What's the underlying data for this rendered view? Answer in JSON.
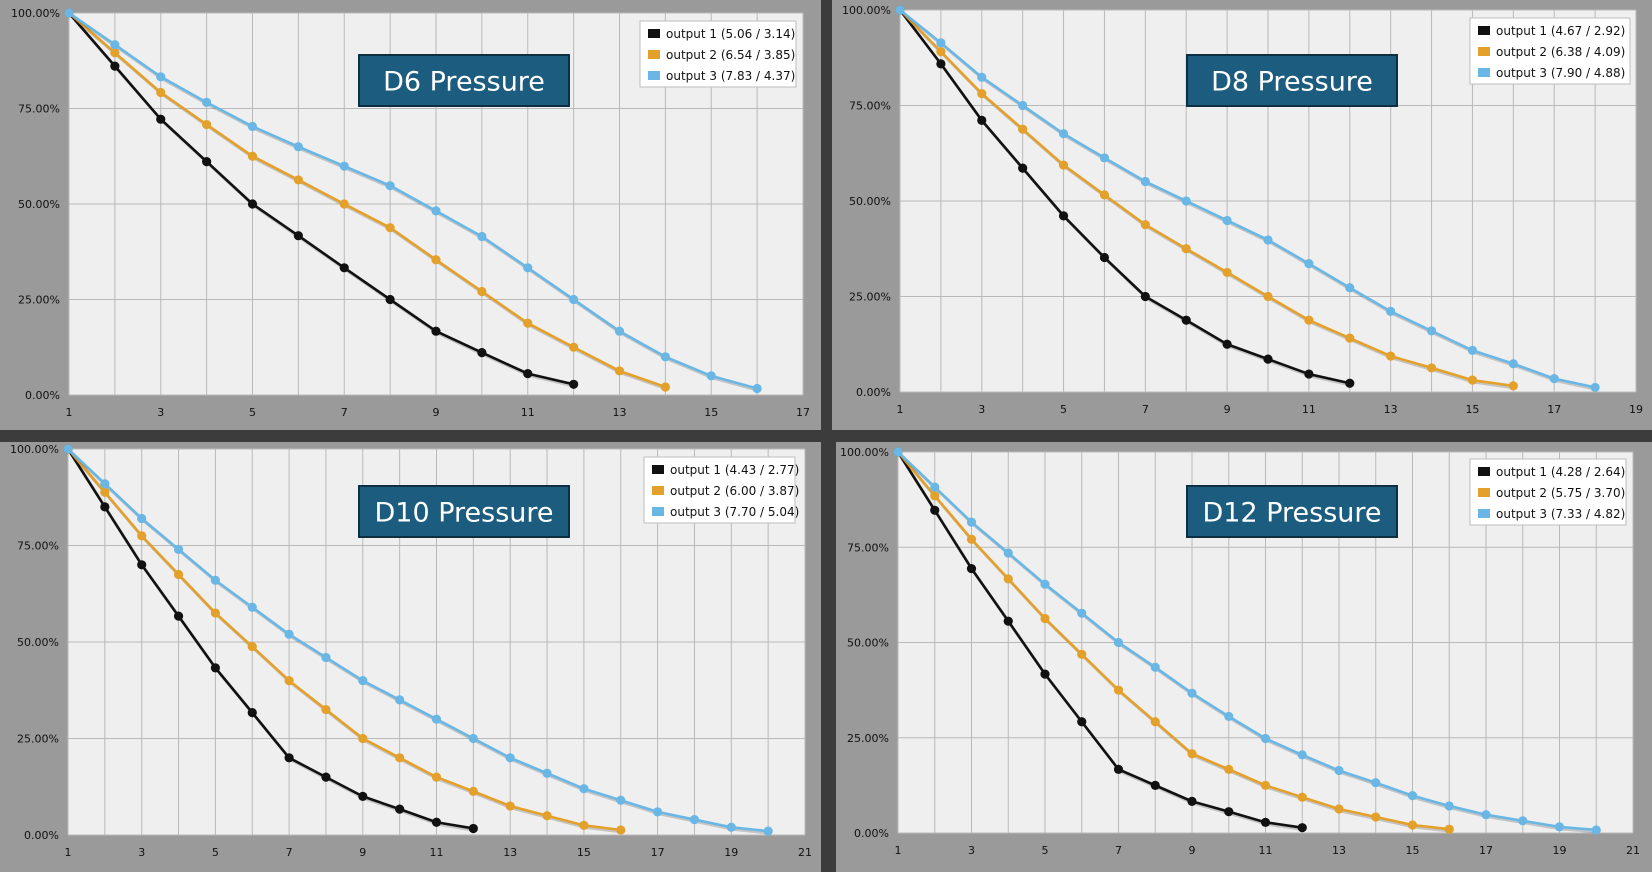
{
  "colors": {
    "output 1": "#111111",
    "output 2": "#e3a02b",
    "output 3": "#6ab7e6",
    "plot_bg": "#efefef",
    "title_bg": "#1c5d7f"
  },
  "chart_data": [
    {
      "type": "line",
      "title": "D6 Pressure",
      "xlabel": "",
      "ylabel": "",
      "xlim": [
        1,
        17
      ],
      "xticks": [
        "1",
        "3",
        "5",
        "7",
        "9",
        "11",
        "13",
        "15",
        "17"
      ],
      "ylim": [
        0,
        100
      ],
      "yticks": [
        "0.00%",
        "25.00%",
        "50.00%",
        "75.00%",
        "100.00%"
      ],
      "grid": true,
      "legend_position": "top-right",
      "series": [
        {
          "name": "output 1 (5.06 / 3.14)",
          "x": [
            1,
            2,
            3,
            4,
            5,
            6,
            7,
            8,
            9,
            10,
            11,
            12
          ],
          "values": [
            100,
            86.1,
            72.2,
            61.1,
            50,
            41.7,
            33.3,
            25,
            16.7,
            11.1,
            5.6,
            2.8
          ]
        },
        {
          "name": "output 2 (6.54 / 3.85)",
          "x": [
            1,
            2,
            3,
            4,
            5,
            6,
            7,
            8,
            9,
            10,
            11,
            12,
            13,
            14
          ],
          "values": [
            100,
            89.6,
            79.2,
            70.8,
            62.5,
            56.3,
            50,
            43.8,
            35.4,
            27.1,
            18.8,
            12.5,
            6.3,
            2.1
          ]
        },
        {
          "name": "output 3 (7.83 / 4.37)",
          "x": [
            1,
            2,
            3,
            4,
            5,
            6,
            7,
            8,
            9,
            10,
            11,
            12,
            13,
            14,
            15,
            16
          ],
          "values": [
            100,
            91.7,
            83.3,
            76.6,
            70.3,
            65,
            59.9,
            54.8,
            48.2,
            41.5,
            33.3,
            25,
            16.7,
            10,
            5,
            1.7
          ]
        }
      ]
    },
    {
      "type": "line",
      "title": "D8 Pressure",
      "xlabel": "",
      "ylabel": "",
      "xlim": [
        1,
        19
      ],
      "xticks": [
        "1",
        "3",
        "5",
        "7",
        "9",
        "11",
        "13",
        "15",
        "17",
        "19"
      ],
      "ylim": [
        0,
        100
      ],
      "yticks": [
        "0.00%",
        "25.00%",
        "50.00%",
        "75.00%",
        "100.00%"
      ],
      "grid": true,
      "legend_position": "top-right",
      "series": [
        {
          "name": "output 1 (4.67 / 2.92)",
          "x": [
            1,
            2,
            3,
            4,
            5,
            6,
            7,
            8,
            9,
            10,
            11,
            12
          ],
          "values": [
            100,
            85.9,
            71.1,
            58.6,
            46.1,
            35.2,
            25,
            18.8,
            12.5,
            8.6,
            4.7,
            2.3
          ]
        },
        {
          "name": "output 2 (6.38 / 4.09)",
          "x": [
            1,
            2,
            3,
            4,
            5,
            6,
            7,
            8,
            9,
            10,
            11,
            12,
            13,
            14,
            15,
            16
          ],
          "values": [
            100,
            89.1,
            78.1,
            68.8,
            59.4,
            51.6,
            43.8,
            37.5,
            31.3,
            25,
            18.8,
            14.1,
            9.4,
            6.3,
            3.1,
            1.6
          ]
        },
        {
          "name": "output 3 (7.90 / 4.88)",
          "x": [
            1,
            2,
            3,
            4,
            5,
            6,
            7,
            8,
            9,
            10,
            11,
            12,
            13,
            14,
            15,
            16,
            17,
            18
          ],
          "values": [
            100,
            91.4,
            82.4,
            75,
            67.6,
            61.3,
            55.1,
            50,
            44.9,
            39.8,
            33.6,
            27.3,
            21.1,
            16,
            10.9,
            7.4,
            3.5,
            1.2
          ]
        }
      ]
    },
    {
      "type": "line",
      "title": "D10 Pressure",
      "xlabel": "",
      "ylabel": "",
      "xlim": [
        1,
        21
      ],
      "xticks": [
        "1",
        "3",
        "5",
        "7",
        "9",
        "11",
        "13",
        "15",
        "17",
        "19",
        "21"
      ],
      "ylim": [
        0,
        100
      ],
      "yticks": [
        "0.00%",
        "25.00%",
        "50.00%",
        "75.00%",
        "100.00%"
      ],
      "grid": true,
      "legend_position": "top-right",
      "series": [
        {
          "name": "output 1 (4.43 / 2.77)",
          "x": [
            1,
            2,
            3,
            4,
            5,
            6,
            7,
            8,
            9,
            10,
            11,
            12
          ],
          "values": [
            100,
            85,
            70,
            56.7,
            43.3,
            31.7,
            20,
            15,
            10,
            6.7,
            3.3,
            1.7
          ]
        },
        {
          "name": "output 2 (6.00 / 3.87)",
          "x": [
            1,
            2,
            3,
            4,
            5,
            6,
            7,
            8,
            9,
            10,
            11,
            12,
            13,
            14,
            15,
            16
          ],
          "values": [
            100,
            88.8,
            77.5,
            67.5,
            57.5,
            48.8,
            40,
            32.5,
            25,
            20,
            15,
            11.3,
            7.5,
            5,
            2.5,
            1.3
          ]
        },
        {
          "name": "output 3 (7.70 / 5.04)",
          "x": [
            1,
            2,
            3,
            4,
            5,
            6,
            7,
            8,
            9,
            10,
            11,
            12,
            13,
            14,
            15,
            16,
            17,
            18,
            19,
            20
          ],
          "values": [
            100,
            91,
            82,
            74,
            66,
            59,
            52,
            46,
            40,
            35,
            30,
            25,
            20,
            16,
            12,
            9,
            6,
            4,
            2,
            1
          ]
        }
      ]
    },
    {
      "type": "line",
      "title": "D12 Pressure",
      "xlabel": "",
      "ylabel": "",
      "xlim": [
        1,
        21
      ],
      "xticks": [
        "1",
        "3",
        "5",
        "7",
        "9",
        "11",
        "13",
        "15",
        "17",
        "19",
        "21"
      ],
      "ylim": [
        0,
        100
      ],
      "yticks": [
        "0.00%",
        "25.00%",
        "50.00%",
        "75.00%",
        "100.00%"
      ],
      "grid": true,
      "legend_position": "top-right",
      "series": [
        {
          "name": "output 1 (4.28 / 2.64)",
          "x": [
            1,
            2,
            3,
            4,
            5,
            6,
            7,
            8,
            9,
            10,
            11,
            12
          ],
          "values": [
            100,
            84.7,
            69.4,
            55.6,
            41.7,
            29.2,
            16.7,
            12.5,
            8.3,
            5.6,
            2.8,
            1.4
          ]
        },
        {
          "name": "output 2 (5.75 / 3.70)",
          "x": [
            1,
            2,
            3,
            4,
            5,
            6,
            7,
            8,
            9,
            10,
            11,
            12,
            13,
            14,
            15,
            16
          ],
          "values": [
            100,
            88.5,
            77.1,
            66.7,
            56.3,
            46.9,
            37.5,
            29.2,
            20.8,
            16.7,
            12.5,
            9.4,
            6.3,
            4.2,
            2.1,
            1
          ]
        },
        {
          "name": "output 3 (7.33 / 4.82)",
          "x": [
            1,
            2,
            3,
            4,
            5,
            6,
            7,
            8,
            9,
            10,
            11,
            12,
            13,
            14,
            15,
            16,
            17,
            18,
            19,
            20
          ],
          "values": [
            100,
            90.8,
            81.6,
            73.5,
            65.3,
            57.7,
            50,
            43.5,
            36.7,
            30.6,
            24.8,
            20.5,
            16.4,
            13.2,
            9.8,
            7.1,
            4.8,
            3.2,
            1.6,
            0.8
          ]
        }
      ]
    }
  ]
}
